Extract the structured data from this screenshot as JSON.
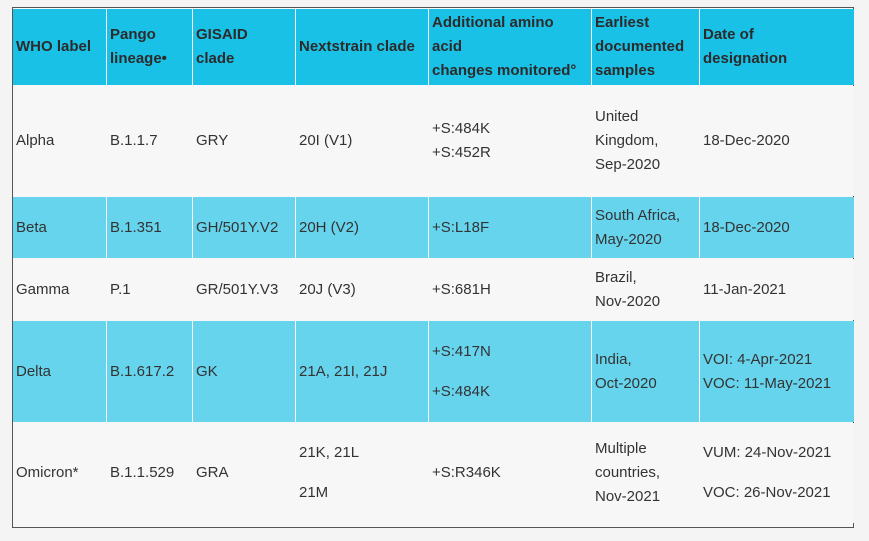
{
  "headers": {
    "who": "WHO label",
    "pango_1": "Pango",
    "pango_2": "lineage•",
    "gisaid_1": "GISAID",
    "gisaid_2": "clade",
    "nextstrain": "Nextstrain clade",
    "amino_1": "Additional amino",
    "amino_2": "acid",
    "amino_3": "changes monitored°",
    "earliest_1": "Earliest",
    "earliest_2": "documented",
    "earliest_3": "samples",
    "date_1": "Date of",
    "date_2": "designation"
  },
  "rows": {
    "alpha": {
      "who": "Alpha",
      "pango": "B.1.1.7",
      "gisaid": "GRY",
      "nextstrain": "20I (V1)",
      "amino_1": "+S:484K",
      "amino_2": "+S:452R",
      "earliest_1": "United",
      "earliest_2": "Kingdom,",
      "earliest_3": "Sep-2020",
      "date": "18-Dec-2020"
    },
    "beta": {
      "who": "Beta",
      "pango": "B.1.351",
      "gisaid": "GH/501Y.V2",
      "nextstrain": "20H (V2)",
      "amino": "+S:L18F",
      "earliest_1": "South Africa,",
      "earliest_2": "May-2020",
      "date": "18-Dec-2020"
    },
    "gamma": {
      "who": "Gamma",
      "pango": "P.1",
      "gisaid": "GR/501Y.V3",
      "nextstrain": "20J (V3)",
      "amino": "+S:681H",
      "earliest_1": "Brazil,",
      "earliest_2": "Nov-2020",
      "date": "11-Jan-2021"
    },
    "delta": {
      "who": "Delta",
      "pango": "B.1.617.2",
      "gisaid": "GK",
      "nextstrain": "21A, 21I, 21J",
      "amino_1": "+S:417N",
      "amino_2": "+S:484K",
      "earliest_1": "India,",
      "earliest_2": "Oct-2020",
      "date_1": "VOI: 4-Apr-2021",
      "date_2": "VOC: 11-May-2021"
    },
    "omicron": {
      "who": "Omicron*",
      "pango": "B.1.1.529",
      "gisaid": "GRA",
      "nextstrain_1": "21K, 21L",
      "nextstrain_2": "21M",
      "amino": "+S:R346K",
      "earliest_1": "Multiple",
      "earliest_2": "countries,",
      "earliest_3": "Nov-2021",
      "date_1": "VUM: 24-Nov-2021",
      "date_2": "VOC: 26-Nov-2021"
    }
  }
}
